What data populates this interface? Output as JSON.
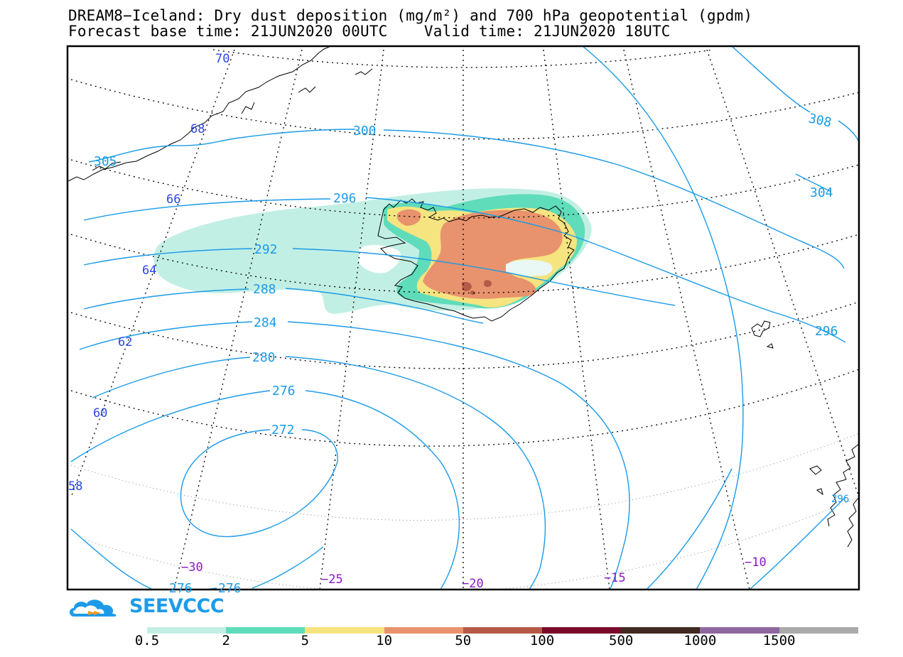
{
  "title_line1": "DREAM8−Iceland: Dry dust deposition (mg/m²) and 700 hPa geopotential (gpdm)",
  "title_line2": "Forecast base time: 21JUN2020 00UTC    Valid time: 21JUN2020 18UTC",
  "brand": "SEEVCCC",
  "colors": {
    "contour": "#1a9be6",
    "lat_label": "#2b46e0",
    "lon_label": "#8a18c8"
  },
  "contour_labels": [
    "70",
    "68",
    "66",
    "64",
    "62",
    "60",
    "58",
    "300",
    "296",
    "292",
    "288",
    "284",
    "280",
    "276",
    "272",
    "276",
    "276",
    "308",
    "304",
    "296",
    "305",
    "296"
  ],
  "lat_labels": [
    "70",
    "68",
    "66",
    "64",
    "62",
    "60",
    "58"
  ],
  "lon_labels": [
    "−30",
    "−25",
    "−20",
    "−15",
    "−10"
  ],
  "geopotential_labels": [
    "300",
    "296",
    "292",
    "288",
    "284",
    "280",
    "276",
    "272",
    "276",
    "276",
    "308",
    "304",
    "296",
    "305",
    "296"
  ],
  "legend": {
    "labels": [
      "0.5",
      "2",
      "5",
      "10",
      "50",
      "100",
      "500",
      "1000",
      "1500"
    ],
    "colors": [
      "#c2efe4",
      "#5fdcba",
      "#f5e480",
      "#e8936d",
      "#b55a48",
      "#7a0a2a",
      "#3e2a1e",
      "#8f67a0",
      "#aaaaaa"
    ]
  }
}
